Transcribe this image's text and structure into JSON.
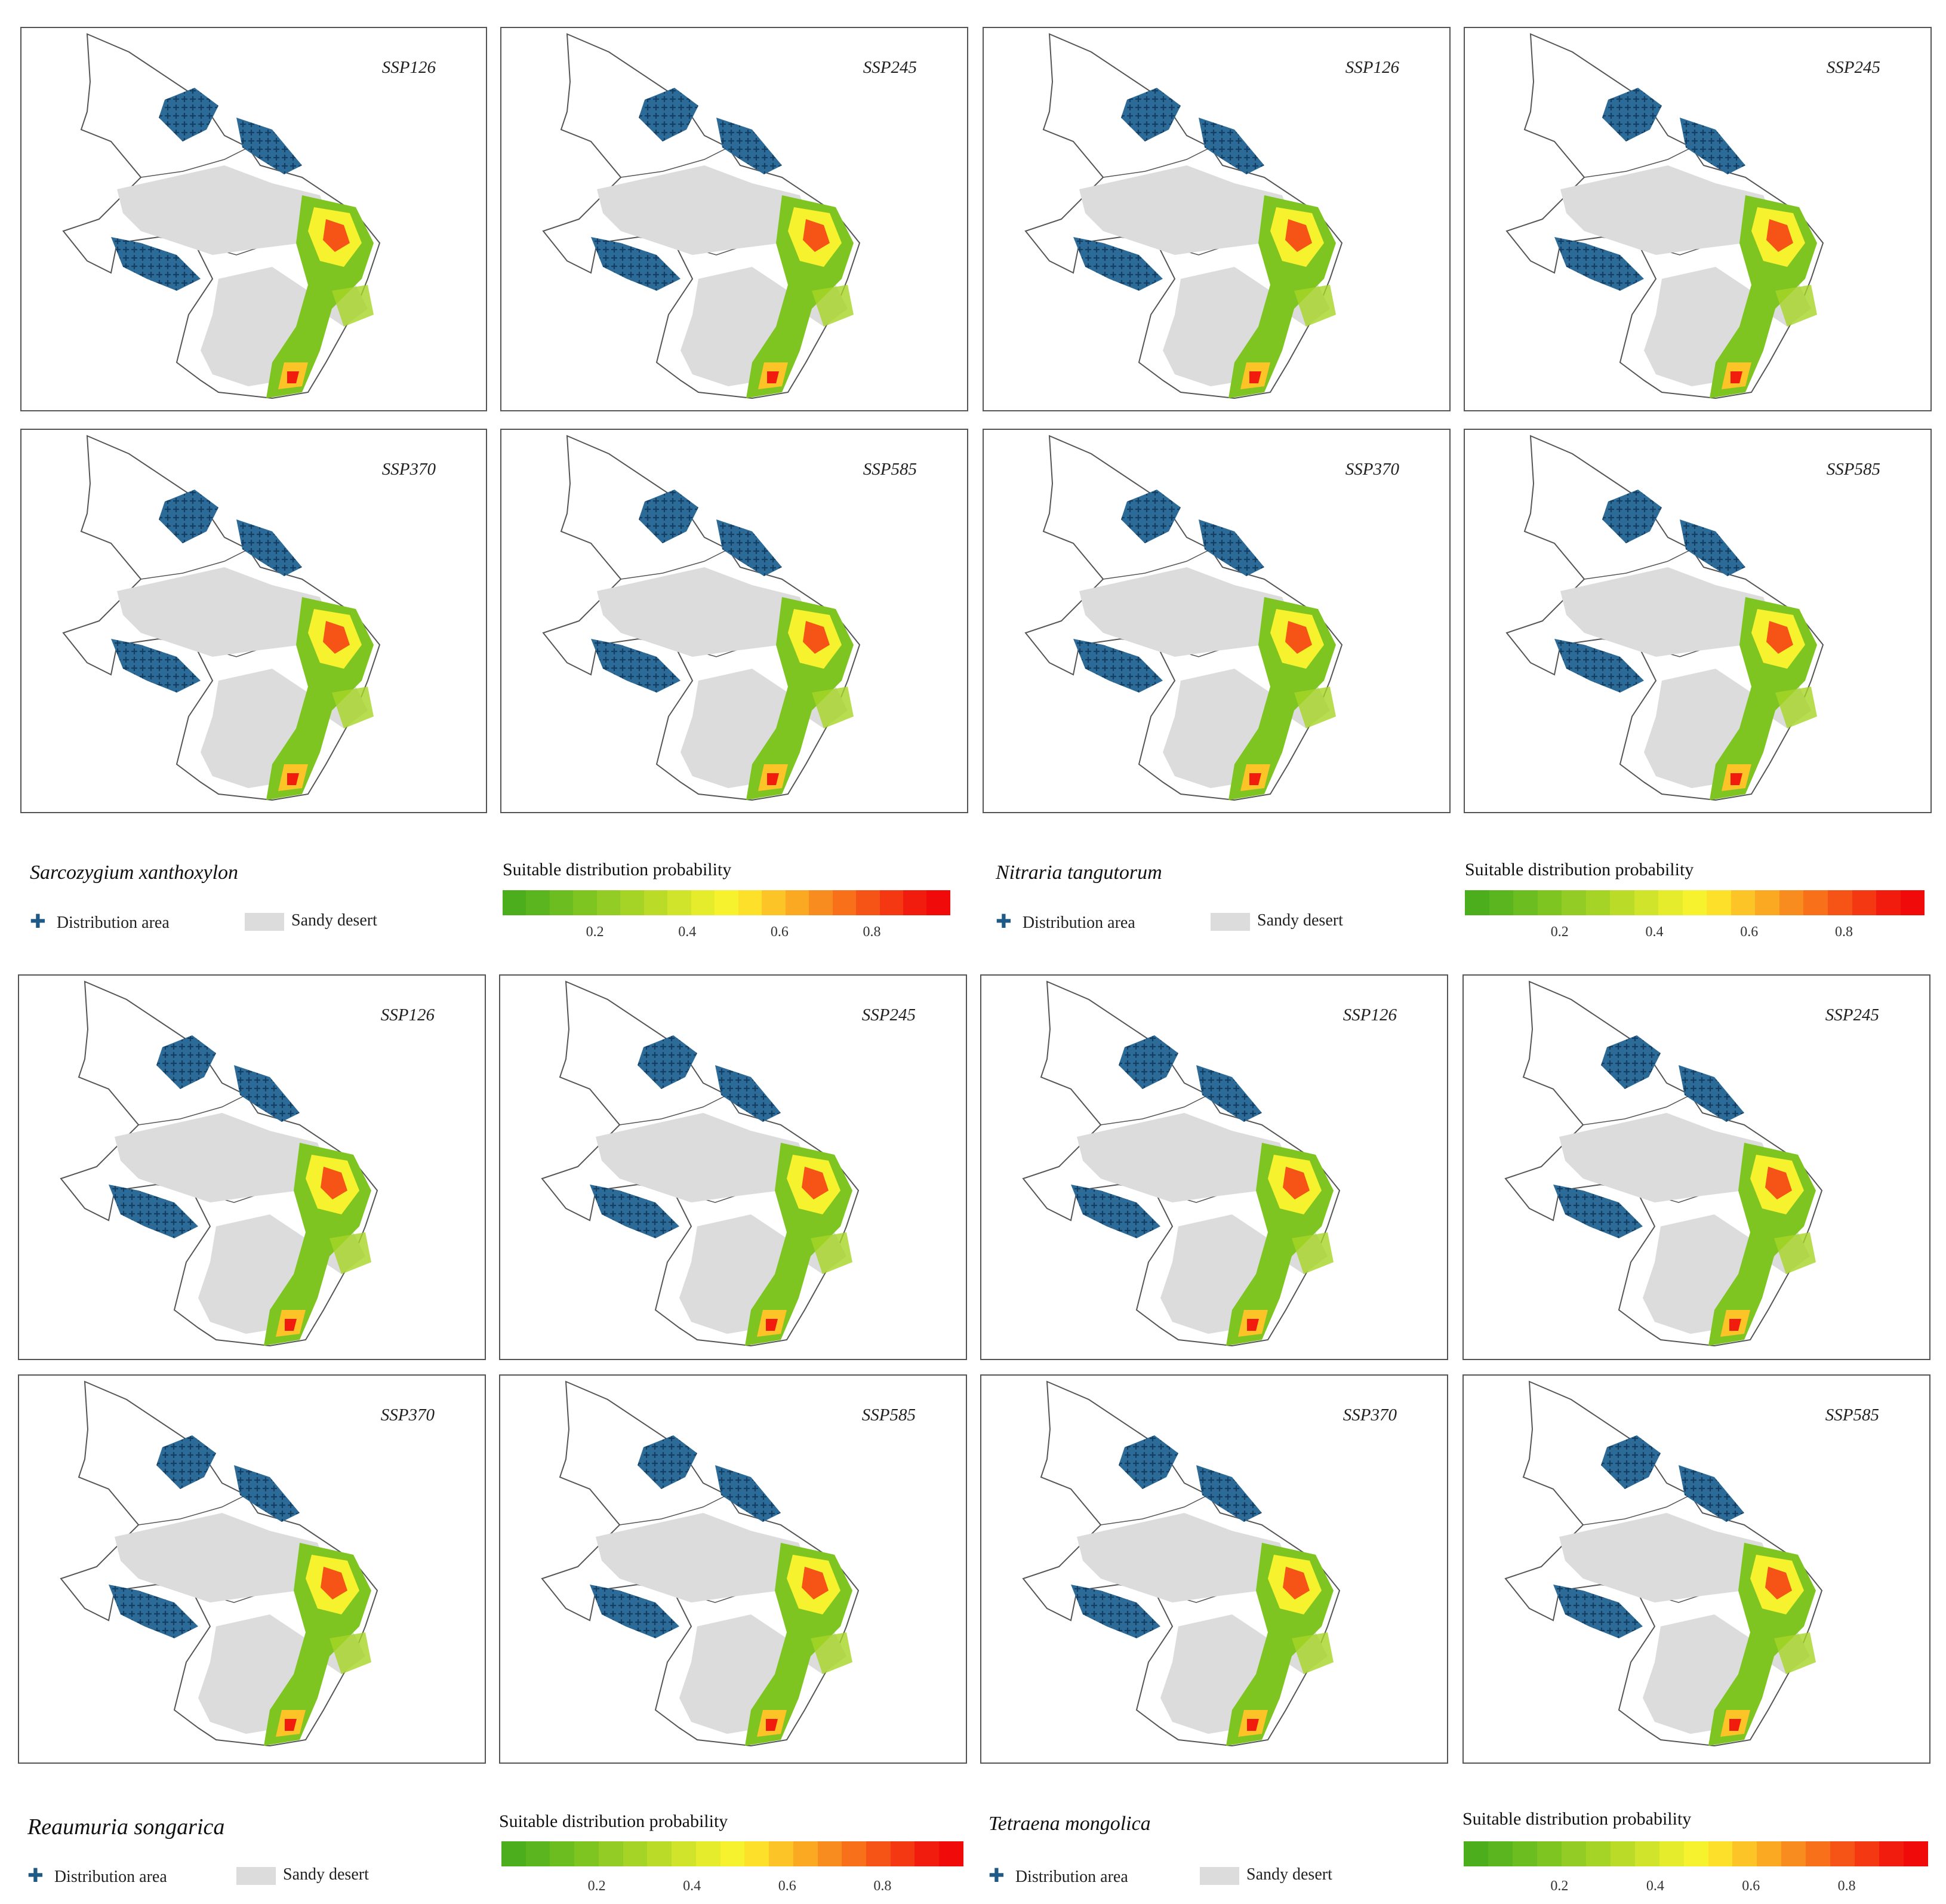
{
  "figure": {
    "scenarios_top": [
      "SSP126",
      "SSP245"
    ],
    "scenarios_bottom": [
      "SSP370",
      "SSP585"
    ]
  },
  "legend": {
    "distribution_label": "Distribution area",
    "sandy_label": "Sandy desert",
    "probability_title": "Suitable distribution probability",
    "ticks": [
      "0.2",
      "0.4",
      "0.6",
      "0.8"
    ],
    "tick_values": [
      0.2,
      0.4,
      0.6,
      0.8
    ],
    "colorbar_colors": [
      "#4cae1c",
      "#5ab51e",
      "#6cbd20",
      "#7fc522",
      "#92cc24",
      "#a6d426",
      "#badc28",
      "#cfe42a",
      "#e4ec2c",
      "#f6f22e",
      "#fde02a",
      "#fcc426",
      "#fba822",
      "#f98c1e",
      "#f8701a",
      "#f65416",
      "#f43812",
      "#f21c0e",
      "#f00a0a"
    ],
    "colors": {
      "distribution": "#1f5a86",
      "sandy": "#dcdcdc",
      "boundary": "#555555",
      "low": "#4cae1c",
      "mid": "#f6f22e",
      "high": "#f21c0e"
    }
  },
  "species_groups": [
    {
      "name": "Sarcozygium xanthoxylon",
      "panels": [
        {
          "scenario": "SSP126"
        },
        {
          "scenario": "SSP245"
        },
        {
          "scenario": "SSP370"
        },
        {
          "scenario": "SSP585"
        }
      ]
    },
    {
      "name": "Nitraria tangutorum",
      "panels": [
        {
          "scenario": "SSP126"
        },
        {
          "scenario": "SSP245"
        },
        {
          "scenario": "SSP370"
        },
        {
          "scenario": "SSP585"
        }
      ]
    },
    {
      "name": "Reaumuria songarica",
      "panels": [
        {
          "scenario": "SSP126"
        },
        {
          "scenario": "SSP245"
        },
        {
          "scenario": "SSP370"
        },
        {
          "scenario": "SSP585"
        }
      ]
    },
    {
      "name": "Tetraena mongolica",
      "panels": [
        {
          "scenario": "SSP126"
        },
        {
          "scenario": "SSP245"
        },
        {
          "scenario": "SSP370"
        },
        {
          "scenario": "SSP585"
        }
      ]
    }
  ]
}
